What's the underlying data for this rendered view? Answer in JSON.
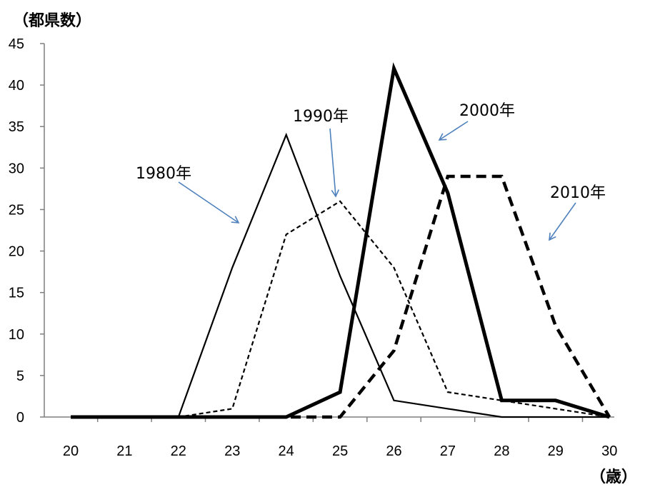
{
  "chart_data": {
    "type": "line",
    "title": "",
    "xlabel": "（歳）",
    "ylabel": "（都県数）",
    "x": [
      20,
      21,
      22,
      23,
      24,
      25,
      26,
      27,
      28,
      29,
      30
    ],
    "xlim": [
      20,
      30
    ],
    "ylim": [
      0,
      45
    ],
    "yticks": [
      0,
      5,
      10,
      15,
      20,
      25,
      30,
      35,
      40,
      45
    ],
    "grid": false,
    "legend": "none",
    "series": [
      {
        "name": "1980年",
        "line_style": "solid-thin",
        "values": [
          0,
          0,
          0,
          18,
          34,
          17,
          2,
          1,
          0,
          0,
          0
        ]
      },
      {
        "name": "1990年",
        "line_style": "dashed-thin",
        "values": [
          0,
          0,
          0,
          1,
          22,
          26,
          18,
          3,
          2,
          1,
          0
        ]
      },
      {
        "name": "2000年",
        "line_style": "solid-thick",
        "values": [
          0,
          0,
          0,
          0,
          0,
          3,
          42,
          27,
          2,
          2,
          0
        ]
      },
      {
        "name": "2010年",
        "line_style": "dashed-thick",
        "values": [
          0,
          0,
          0,
          0,
          0,
          0,
          8,
          29,
          29,
          11,
          0
        ]
      }
    ],
    "annotations": [
      {
        "text": "1980年",
        "arrow_color": "#4f81bd",
        "series": "1980年"
      },
      {
        "text": "1990年",
        "arrow_color": "#4f81bd",
        "series": "1990年"
      },
      {
        "text": "2000年",
        "arrow_color": "#4f81bd",
        "series": "2000年"
      },
      {
        "text": "2010年",
        "arrow_color": "#4f81bd",
        "series": "2010年"
      }
    ],
    "colors": {
      "line": "#000000",
      "axis": "#7f7f7f",
      "arrow": "#4f81bd"
    }
  }
}
